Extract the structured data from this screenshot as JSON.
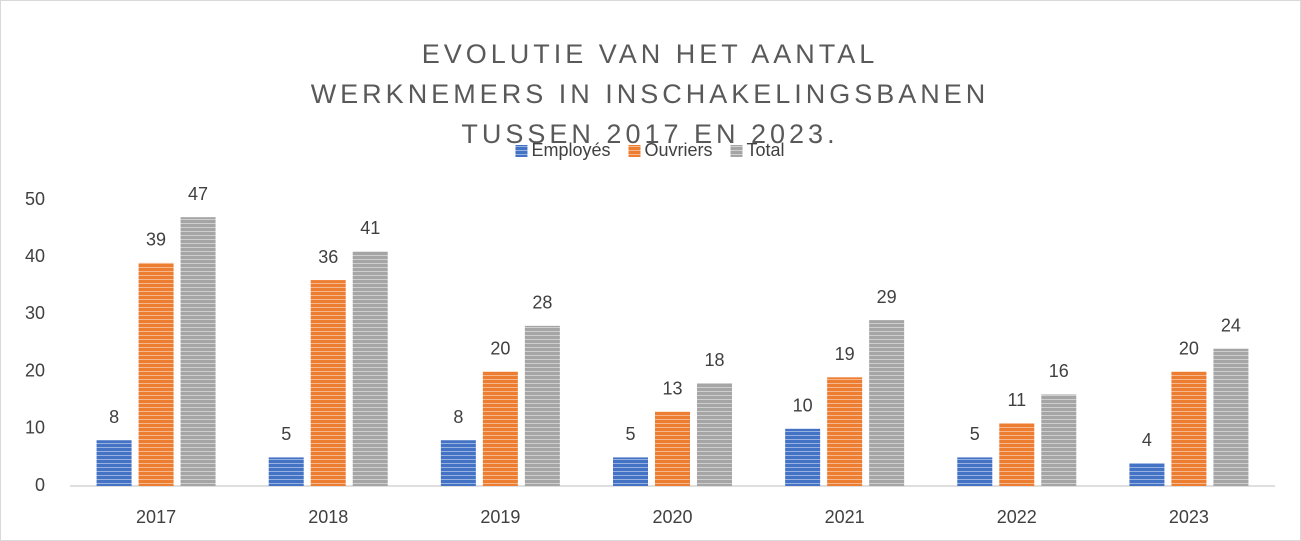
{
  "chart_data": {
    "type": "bar",
    "title": "EVOLUTIE VAN HET AANTAL WERKNEMERS IN INSCHAKELINGSBANEN TUSSEN 2017 EN 2023.",
    "categories": [
      "2017",
      "2018",
      "2019",
      "2020",
      "2021",
      "2022",
      "2023"
    ],
    "series": [
      {
        "name": "Employés",
        "color": "#4472c4",
        "values": [
          8,
          5,
          8,
          5,
          10,
          5,
          4
        ]
      },
      {
        "name": "Ouvriers",
        "color": "#ed7d31",
        "values": [
          39,
          36,
          20,
          13,
          19,
          11,
          20
        ]
      },
      {
        "name": "Total",
        "color": "#a5a5a5",
        "values": [
          47,
          41,
          28,
          18,
          29,
          16,
          24
        ]
      }
    ],
    "ylim": [
      0,
      50
    ],
    "yticks": [
      0,
      10,
      20,
      30,
      40,
      50
    ],
    "grid": false,
    "legend": "top"
  }
}
